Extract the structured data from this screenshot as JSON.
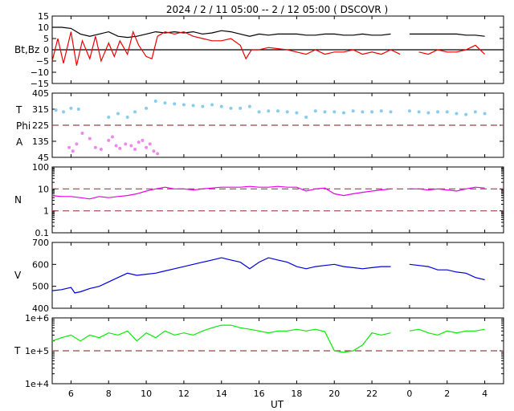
{
  "title": "2024 /  2 / 11   05:00 --  2 / 12   05:00 ( DSCOVR )",
  "x_axis": {
    "label": "UT",
    "ticks": [
      "6",
      "8",
      "10",
      "12",
      "14",
      "16",
      "18",
      "20",
      "22",
      "0",
      "2",
      "4"
    ],
    "tick_hours": [
      6,
      8,
      10,
      12,
      14,
      16,
      18,
      20,
      22,
      24,
      26,
      28
    ],
    "range_hours": [
      5,
      29
    ]
  },
  "colors": {
    "bt": "#000000",
    "bz": "#ee0000",
    "temperature_panel": "#88ccee",
    "phi_panel": "#ee88ee",
    "density": "#ee00ee",
    "velocity": "#0000dd",
    "temperature": "#00ee00",
    "reference": "#994444",
    "axis": "#000000"
  },
  "chart_data": [
    {
      "type": "line",
      "panel": "magnetic-field",
      "ylabel": "Bt,Bz",
      "ylim": [
        -15,
        15
      ],
      "yticks": [
        "15",
        "10",
        "5",
        "0",
        "−5",
        "−10",
        "−15"
      ],
      "ytick_values": [
        15,
        10,
        5,
        0,
        -5,
        -10,
        -15
      ],
      "zero_line": 0,
      "series": [
        {
          "key": "bt",
          "color": "#000000",
          "x": [
            5,
            5.5,
            6,
            6.5,
            7,
            7.5,
            8,
            8.5,
            9,
            9.5,
            10,
            10.5,
            11,
            11.5,
            12,
            12.5,
            13,
            13.5,
            14,
            14.5,
            15,
            15.5,
            16,
            16.5,
            17,
            17.5,
            18,
            18.5,
            19,
            19.5,
            20,
            20.5,
            21,
            21.5,
            22,
            22.5,
            23,
            23.5,
            24,
            24.5,
            25,
            25.5,
            26,
            26.5,
            27,
            27.5,
            28
          ],
          "values": [
            10,
            10,
            9.5,
            7,
            6,
            7,
            8,
            6,
            5.5,
            6,
            7,
            8,
            7.5,
            8,
            7.5,
            8,
            7,
            7.5,
            8.5,
            8,
            7,
            6,
            7,
            6.5,
            7,
            7,
            7,
            6.5,
            6.5,
            7,
            7,
            6.5,
            6.5,
            7,
            6.5,
            6.5,
            7,
            null,
            7,
            7,
            7,
            7,
            7,
            7,
            6.5,
            6.5,
            6
          ]
        },
        {
          "key": "bz",
          "color": "#ee0000",
          "x": [
            5,
            5.3,
            5.6,
            6,
            6.3,
            6.6,
            7,
            7.3,
            7.6,
            8,
            8.3,
            8.6,
            9,
            9.3,
            9.6,
            10,
            10.3,
            10.6,
            11,
            11.5,
            12,
            12.5,
            13,
            13.5,
            14,
            14.5,
            15,
            15.3,
            15.6,
            16,
            16.5,
            17,
            17.5,
            18,
            18.5,
            19,
            19.5,
            20,
            20.5,
            21,
            21.5,
            22,
            22.5,
            23,
            23.5,
            24,
            24.5,
            25,
            25.5,
            26,
            26.5,
            27,
            27.5,
            28
          ],
          "values": [
            -5,
            5,
            -6,
            8,
            -7,
            4,
            -4,
            6,
            -5,
            3,
            -3,
            4,
            -2,
            8,
            2,
            -3,
            -4,
            6,
            8,
            7,
            8,
            6,
            5,
            4,
            4,
            5,
            2,
            -4,
            0,
            0,
            1,
            0.5,
            0,
            -1,
            -2,
            0,
            -2,
            -1,
            -1,
            0,
            -2,
            -1,
            -2,
            0,
            -2,
            null,
            -1,
            -2,
            0,
            -1,
            -1,
            0,
            2,
            -2
          ]
        }
      ]
    },
    {
      "type": "scatter",
      "panel": "plasma-angles",
      "ylabels": [
        "T",
        "Phi",
        "A"
      ],
      "ylim": [
        45,
        405
      ],
      "yticks": [
        "405",
        "315",
        "225",
        "135",
        "45"
      ],
      "ytick_values": [
        405,
        315,
        225,
        135,
        45
      ],
      "reference_line": 225,
      "series": [
        {
          "key": "t",
          "color": "#88ccee",
          "x": [
            5.2,
            5.6,
            6,
            6.4,
            8,
            8.5,
            9,
            9.4,
            10,
            10.5,
            11,
            11.5,
            12,
            12.5,
            13,
            13.5,
            14,
            14.5,
            15,
            15.5,
            16,
            16.5,
            17,
            17.5,
            18,
            18.5,
            19,
            19.5,
            20,
            20.5,
            21,
            21.5,
            22,
            22.5,
            23,
            24,
            24.5,
            25,
            25.5,
            26,
            26.5,
            27,
            27.5,
            28
          ],
          "values": [
            310,
            300,
            320,
            315,
            270,
            290,
            270,
            300,
            320,
            360,
            350,
            345,
            340,
            335,
            330,
            340,
            330,
            320,
            320,
            330,
            300,
            305,
            305,
            300,
            295,
            270,
            305,
            300,
            300,
            295,
            305,
            300,
            300,
            305,
            300,
            305,
            300,
            295,
            300,
            300,
            290,
            285,
            300,
            290
          ]
        },
        {
          "key": "phi",
          "color": "#ee88ee",
          "x": [
            5.9,
            6.1,
            6.3,
            6.6,
            7,
            7.3,
            7.6,
            8,
            8.2,
            8.4,
            8.6,
            8.9,
            9.2,
            9.4,
            9.6,
            9.8,
            10,
            10.2,
            10.4,
            10.6
          ],
          "values": [
            100,
            80,
            120,
            180,
            150,
            100,
            90,
            140,
            160,
            110,
            95,
            120,
            110,
            90,
            130,
            140,
            100,
            120,
            80,
            65
          ]
        }
      ]
    },
    {
      "type": "line",
      "panel": "density",
      "ylabel": "N",
      "scale": "log",
      "ylim": [
        0.1,
        100
      ],
      "yticks": [
        "100",
        "10",
        "1",
        "0.1"
      ],
      "ytick_values": [
        100,
        10,
        1,
        0.1
      ],
      "reference_lines": [
        10,
        1
      ],
      "series": [
        {
          "key": "n",
          "color": "#ee00ee",
          "x": [
            5,
            5.5,
            6,
            6.5,
            7,
            7.5,
            8,
            8.5,
            9,
            9.5,
            10,
            10.5,
            11,
            11.5,
            12,
            12.5,
            13,
            13.5,
            14,
            14.5,
            15,
            15.5,
            16,
            16.5,
            17,
            17.5,
            18,
            18.5,
            19,
            19.5,
            20,
            20.5,
            21,
            21.5,
            22,
            22.5,
            23,
            23.5,
            24,
            24.5,
            25,
            25.5,
            26,
            26.5,
            27,
            27.5,
            28
          ],
          "values": [
            5,
            4.5,
            4.5,
            4,
            3.5,
            4.5,
            4,
            4.5,
            5,
            6,
            8,
            10,
            12,
            10,
            10,
            9,
            10,
            11,
            12,
            12,
            12,
            13,
            12,
            12,
            13,
            12,
            12,
            8,
            10,
            11,
            6,
            5,
            6,
            7,
            8,
            9,
            10,
            null,
            10,
            10,
            9,
            10,
            9,
            8,
            10,
            12,
            11
          ]
        }
      ]
    },
    {
      "type": "line",
      "panel": "velocity",
      "ylabel": "V",
      "ylim": [
        400,
        700
      ],
      "yticks": [
        "700",
        "600",
        "500",
        "400"
      ],
      "ytick_values": [
        700,
        600,
        500,
        400
      ],
      "series": [
        {
          "key": "v",
          "color": "#0000dd",
          "x": [
            5,
            5.5,
            6,
            6.2,
            6.5,
            7,
            7.5,
            8,
            8.5,
            9,
            9.5,
            10,
            10.5,
            11,
            11.5,
            12,
            12.5,
            13,
            13.5,
            14,
            14.5,
            15,
            15.5,
            16,
            16.5,
            17,
            17.5,
            18,
            18.5,
            19,
            19.5,
            20,
            20.5,
            21,
            21.5,
            22,
            22.5,
            23,
            23.5,
            24,
            24.5,
            25,
            25.5,
            26,
            26.5,
            27,
            27.5,
            28
          ],
          "values": [
            480,
            485,
            495,
            470,
            475,
            490,
            500,
            520,
            540,
            560,
            550,
            555,
            560,
            570,
            580,
            590,
            600,
            610,
            620,
            630,
            620,
            610,
            580,
            610,
            630,
            620,
            610,
            590,
            580,
            590,
            595,
            600,
            590,
            585,
            580,
            585,
            590,
            590,
            null,
            600,
            595,
            590,
            575,
            575,
            565,
            560,
            540,
            530
          ]
        }
      ]
    },
    {
      "type": "line",
      "panel": "temperature",
      "ylabel": "T",
      "scale": "log",
      "ylim": [
        10000,
        1000000
      ],
      "yticks": [
        "1e+6",
        "1e+5",
        "1e+4"
      ],
      "ytick_values": [
        1000000,
        100000,
        10000
      ],
      "reference_line": 100000,
      "series": [
        {
          "key": "temp",
          "color": "#00ee00",
          "x": [
            5,
            5.5,
            6,
            6.5,
            7,
            7.5,
            8,
            8.5,
            9,
            9.5,
            10,
            10.5,
            11,
            11.5,
            12,
            12.5,
            13,
            13.5,
            14,
            14.5,
            15,
            15.5,
            16,
            16.5,
            17,
            17.5,
            18,
            18.5,
            19,
            19.5,
            20,
            20.5,
            21,
            21.5,
            22,
            22.5,
            23,
            23.5,
            24,
            24.5,
            25,
            25.5,
            26,
            26.5,
            27,
            27.5,
            28
          ],
          "values": [
            200000,
            250000,
            300000,
            200000,
            300000,
            250000,
            350000,
            300000,
            400000,
            200000,
            350000,
            250000,
            400000,
            300000,
            350000,
            300000,
            400000,
            500000,
            600000,
            600000,
            500000,
            450000,
            400000,
            350000,
            400000,
            400000,
            450000,
            400000,
            450000,
            380000,
            100000,
            90000,
            100000,
            150000,
            350000,
            300000,
            350000,
            null,
            400000,
            450000,
            350000,
            300000,
            400000,
            350000,
            400000,
            400000,
            450000
          ]
        }
      ]
    }
  ]
}
